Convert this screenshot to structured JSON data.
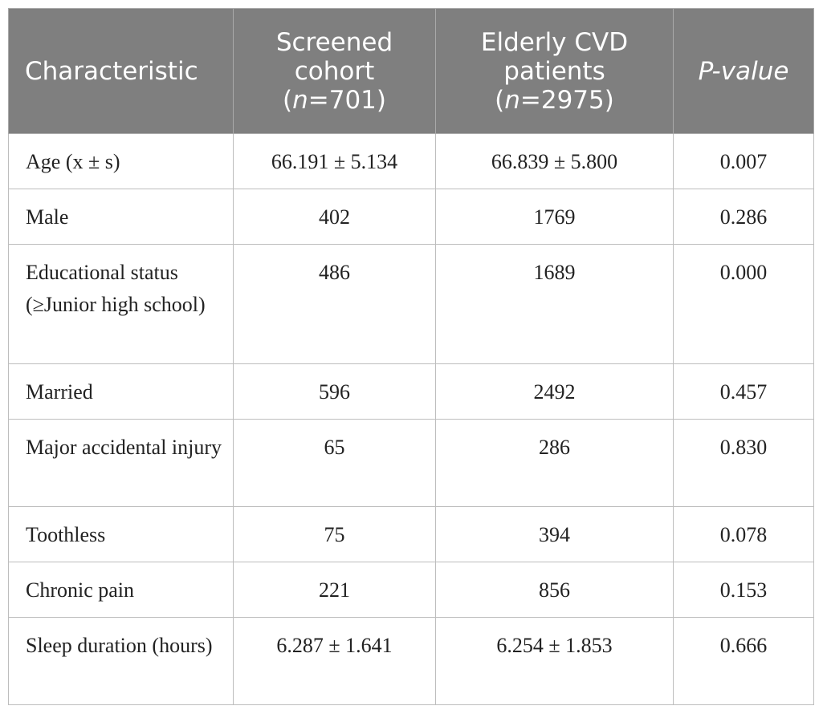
{
  "table": {
    "headers": {
      "characteristic": "Characteristic",
      "screened_line1": "Screened",
      "screened_line2": "cohort",
      "screened_n_prefix": "(",
      "screened_n_italic": "n",
      "screened_n_value": "=701)",
      "elderly_line1": "Elderly CVD",
      "elderly_line2": "patients",
      "elderly_n_prefix": "(",
      "elderly_n_italic": "n",
      "elderly_n_value": "=2975)",
      "pvalue": "P-value"
    },
    "rows": [
      {
        "characteristic": "Age (x ± s)",
        "screened": "66.191 ± 5.134",
        "elderly": "66.839 ± 5.800",
        "p": "0.007"
      },
      {
        "characteristic": "Male",
        "screened": "402",
        "elderly": "1769",
        "p": "0.286"
      },
      {
        "characteristic": "Educational status (≥Junior high school)",
        "screened": "486",
        "elderly": "1689",
        "p": "0.000"
      },
      {
        "characteristic": "Married",
        "screened": "596",
        "elderly": "2492",
        "p": "0.457"
      },
      {
        "characteristic": "Major accidental injury",
        "screened": "65",
        "elderly": "286",
        "p": "0.830"
      },
      {
        "characteristic": "Toothless",
        "screened": "75",
        "elderly": "394",
        "p": "0.078"
      },
      {
        "characteristic": "Chronic pain",
        "screened": "221",
        "elderly": "856",
        "p": "0.153"
      },
      {
        "characteristic": "Sleep duration (hours)",
        "screened": "6.287 ± 1.641",
        "elderly": "6.254 ± 1.853",
        "p": "0.666"
      }
    ]
  }
}
